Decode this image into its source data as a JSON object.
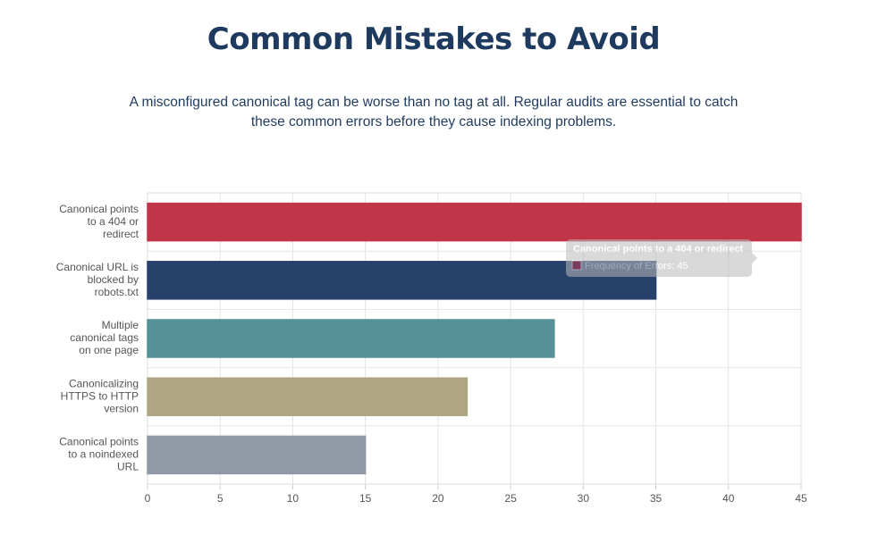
{
  "title": "Common Mistakes to Avoid",
  "subtitle": "A misconfigured canonical tag can be worse than no tag at all. Regular audits are essential to catch these common errors before they cause indexing problems.",
  "chart_data": {
    "type": "bar",
    "orientation": "horizontal",
    "categories": [
      [
        "Canonical points",
        "to a 404 or",
        "redirect"
      ],
      [
        "Canonical URL is",
        "blocked by",
        "robots.txt"
      ],
      [
        "Multiple",
        "canonical tags",
        "on one page"
      ],
      [
        "Canonicalizing",
        "HTTPS to HTTP",
        "version"
      ],
      [
        "Canonical points",
        "to a noindexed",
        "URL"
      ]
    ],
    "series": [
      {
        "name": "Frequency of Errors",
        "values": [
          45,
          35,
          28,
          22,
          15
        ],
        "colors": [
          "#c13548",
          "#26416a",
          "#559196",
          "#ada584",
          "#8f9aa6"
        ]
      }
    ],
    "xlim": [
      0,
      45
    ],
    "xticks": [
      0,
      5,
      10,
      15,
      20,
      25,
      30,
      35,
      40,
      45
    ],
    "grid": true
  }
}
